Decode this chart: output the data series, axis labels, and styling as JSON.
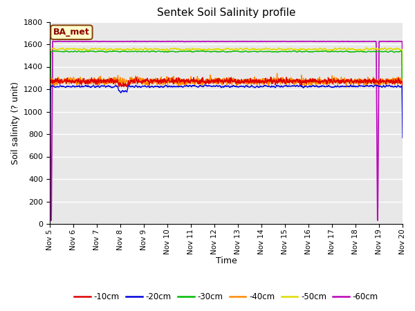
{
  "title": "Sentek Soil Salinity profile",
  "xlabel": "Time",
  "ylabel": "Soil salinity (? unit)",
  "ylim": [
    0,
    1800
  ],
  "yticks": [
    0,
    200,
    400,
    600,
    800,
    1000,
    1200,
    1400,
    1600,
    1800
  ],
  "background_color": "#e8e8e8",
  "legend_label": "BA_met",
  "x_start": 5,
  "x_end": 20,
  "num_points": 2000,
  "series": {
    "-10cm": {
      "color": "#dd0000",
      "base": 1270,
      "noise": 18
    },
    "-20cm": {
      "color": "#0000dd",
      "base": 1225,
      "noise": 12
    },
    "-30cm": {
      "color": "#00bb00",
      "base": 1535,
      "noise": 8
    },
    "-40cm": {
      "color": "#ff8800",
      "base": 1270,
      "noise": 22
    },
    "-50cm": {
      "color": "#dddd00",
      "base": 1555,
      "noise": 14
    },
    "-60cm": {
      "color": "#bb00bb",
      "base": 1625,
      "noise": 5
    }
  },
  "xtick_labels": [
    "Nov 5",
    "Nov 6",
    "Nov 7",
    "Nov 8",
    "Nov 9",
    "Nov 10",
    "Nov 11",
    "Nov 12",
    "Nov 13",
    "Nov 14",
    "Nov 15",
    "Nov 16",
    "Nov 17",
    "Nov 18",
    "Nov 19",
    "Nov 20"
  ],
  "xtick_positions": [
    5,
    6,
    7,
    8,
    9,
    10,
    11,
    12,
    13,
    14,
    15,
    16,
    17,
    18,
    19,
    20
  ],
  "figsize": [
    6.0,
    4.5
  ],
  "dpi": 100
}
